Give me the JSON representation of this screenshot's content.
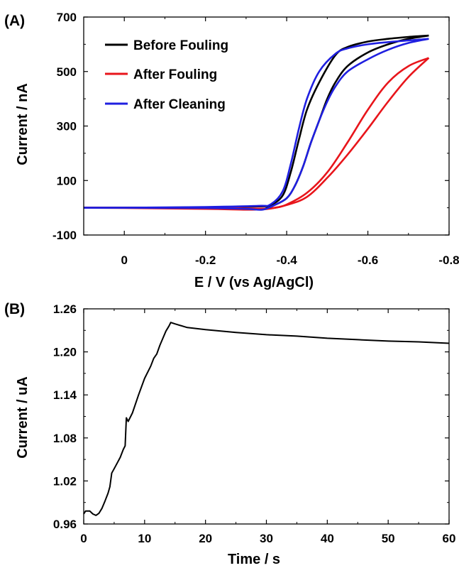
{
  "chart_data": [
    {
      "panel_label": "(A)",
      "type": "line",
      "xlabel": "E / V (vs Ag/AgCl)",
      "ylabel": "Current / nA",
      "xlim": [
        0.1,
        -0.8
      ],
      "ylim": [
        -100,
        700
      ],
      "x_reversed": true,
      "xticks": [
        0,
        -0.2,
        -0.4,
        -0.6,
        -0.8
      ],
      "xtick_labels": [
        "0",
        "-0.2",
        "-0.4",
        "-0.6",
        "-0.8"
      ],
      "yticks": [
        -100,
        100,
        300,
        500,
        700
      ],
      "ytick_labels": [
        "-100",
        "100",
        "300",
        "500",
        "700"
      ],
      "legend_position": "top-left",
      "grid": false,
      "series": [
        {
          "name": "Before Fouling",
          "color": "#000000",
          "forward": [
            [
              0.1,
              0
            ],
            [
              0,
              0
            ],
            [
              -0.2,
              2
            ],
            [
              -0.33,
              5
            ],
            [
              -0.36,
              10
            ],
            [
              -0.39,
              45
            ],
            [
              -0.41,
              130
            ],
            [
              -0.43,
              250
            ],
            [
              -0.45,
              360
            ],
            [
              -0.48,
              460
            ],
            [
              -0.52,
              560
            ],
            [
              -0.55,
              590
            ],
            [
              -0.6,
              610
            ],
            [
              -0.65,
              620
            ],
            [
              -0.7,
              627
            ],
            [
              -0.75,
              632
            ]
          ],
          "reverse": [
            [
              -0.75,
              632
            ],
            [
              -0.7,
              620
            ],
            [
              -0.65,
              600
            ],
            [
              -0.6,
              570
            ],
            [
              -0.55,
              520
            ],
            [
              -0.52,
              460
            ],
            [
              -0.5,
              400
            ],
            [
              -0.48,
              320
            ],
            [
              -0.46,
              240
            ],
            [
              -0.44,
              150
            ],
            [
              -0.42,
              80
            ],
            [
              -0.4,
              35
            ],
            [
              -0.37,
              10
            ],
            [
              -0.34,
              -5
            ],
            [
              -0.3,
              -3
            ],
            [
              -0.2,
              -1
            ],
            [
              0,
              0
            ],
            [
              0.1,
              0
            ]
          ]
        },
        {
          "name": "After Fouling",
          "color": "#e8151b",
          "forward": [
            [
              0.1,
              0
            ],
            [
              0,
              0
            ],
            [
              -0.2,
              0
            ],
            [
              -0.33,
              -3
            ],
            [
              -0.37,
              0
            ],
            [
              -0.4,
              12
            ],
            [
              -0.45,
              55
            ],
            [
              -0.5,
              130
            ],
            [
              -0.55,
              240
            ],
            [
              -0.6,
              360
            ],
            [
              -0.65,
              460
            ],
            [
              -0.7,
              520
            ],
            [
              -0.75,
              550
            ]
          ],
          "reverse": [
            [
              -0.75,
              550
            ],
            [
              -0.7,
              480
            ],
            [
              -0.65,
              390
            ],
            [
              -0.6,
              290
            ],
            [
              -0.55,
              195
            ],
            [
              -0.5,
              110
            ],
            [
              -0.45,
              40
            ],
            [
              -0.4,
              10
            ],
            [
              -0.35,
              -5
            ],
            [
              -0.3,
              -7
            ],
            [
              -0.2,
              -4
            ],
            [
              0,
              -1
            ],
            [
              0.1,
              0
            ]
          ]
        },
        {
          "name": "After Cleaning",
          "color": "#1f1fe0",
          "forward": [
            [
              0.1,
              0
            ],
            [
              0,
              0
            ],
            [
              -0.2,
              3
            ],
            [
              -0.33,
              7
            ],
            [
              -0.36,
              12
            ],
            [
              -0.39,
              60
            ],
            [
              -0.41,
              160
            ],
            [
              -0.43,
              290
            ],
            [
              -0.45,
              400
            ],
            [
              -0.48,
              500
            ],
            [
              -0.52,
              565
            ],
            [
              -0.55,
              585
            ],
            [
              -0.6,
              600
            ],
            [
              -0.65,
              608
            ],
            [
              -0.7,
              614
            ],
            [
              -0.75,
              620
            ]
          ],
          "reverse": [
            [
              -0.75,
              620
            ],
            [
              -0.7,
              605
            ],
            [
              -0.65,
              580
            ],
            [
              -0.6,
              545
            ],
            [
              -0.55,
              500
            ],
            [
              -0.52,
              445
            ],
            [
              -0.5,
              390
            ],
            [
              -0.48,
              320
            ],
            [
              -0.46,
              240
            ],
            [
              -0.44,
              150
            ],
            [
              -0.42,
              80
            ],
            [
              -0.4,
              35
            ],
            [
              -0.37,
              10
            ],
            [
              -0.34,
              -7
            ],
            [
              -0.3,
              -4
            ],
            [
              -0.2,
              -1
            ],
            [
              0,
              0
            ],
            [
              0.1,
              0
            ]
          ]
        }
      ]
    },
    {
      "panel_label": "(B)",
      "type": "line",
      "xlabel": "Time / s",
      "ylabel": "Current / uA",
      "xlim": [
        0,
        60
      ],
      "ylim": [
        0.96,
        1.26
      ],
      "xticks": [
        0,
        10,
        20,
        30,
        40,
        50,
        60
      ],
      "xtick_labels": [
        "0",
        "10",
        "20",
        "30",
        "40",
        "50",
        "60"
      ],
      "yticks": [
        0.96,
        1.02,
        1.08,
        1.14,
        1.2,
        1.26
      ],
      "ytick_labels": [
        "0.96",
        "1.02",
        "1.08",
        "1.14",
        "1.20",
        "1.26"
      ],
      "grid": false,
      "series": [
        {
          "color": "#000000",
          "points": [
            [
              0,
              0.974
            ],
            [
              0.3,
              0.978
            ],
            [
              1,
              0.978
            ],
            [
              1.5,
              0.974
            ],
            [
              2,
              0.972
            ],
            [
              2.5,
              0.975
            ],
            [
              3,
              0.982
            ],
            [
              3.5,
              0.992
            ],
            [
              4,
              1.003
            ],
            [
              4.3,
              1.012
            ],
            [
              4.6,
              1.031
            ],
            [
              5,
              1.037
            ],
            [
              5.5,
              1.045
            ],
            [
              6,
              1.053
            ],
            [
              6.5,
              1.064
            ],
            [
              6.8,
              1.069
            ],
            [
              7,
              1.108
            ],
            [
              7.3,
              1.103
            ],
            [
              8,
              1.115
            ],
            [
              9,
              1.14
            ],
            [
              10,
              1.163
            ],
            [
              11,
              1.18
            ],
            [
              11.5,
              1.191
            ],
            [
              12,
              1.197
            ],
            [
              12.5,
              1.209
            ],
            [
              13,
              1.219
            ],
            [
              13.5,
              1.229
            ],
            [
              14,
              1.236
            ],
            [
              14.3,
              1.241
            ],
            [
              15,
              1.239
            ],
            [
              17,
              1.234
            ],
            [
              20,
              1.231
            ],
            [
              25,
              1.227
            ],
            [
              30,
              1.224
            ],
            [
              35,
              1.222
            ],
            [
              40,
              1.219
            ],
            [
              45,
              1.217
            ],
            [
              50,
              1.215
            ],
            [
              55,
              1.214
            ],
            [
              60,
              1.212
            ]
          ]
        }
      ]
    }
  ]
}
